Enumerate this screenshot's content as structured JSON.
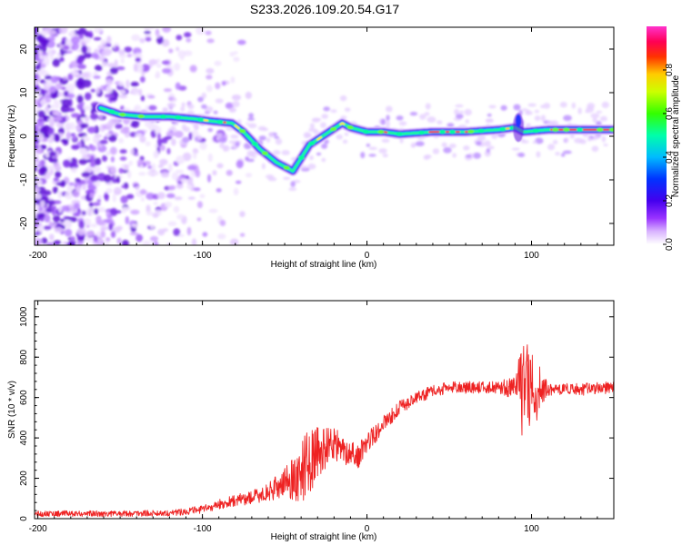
{
  "chart_data": [
    {
      "type": "heatmap",
      "title": "S233.2026.109.20.54.G17",
      "xlabel": "Height of straight line (km)",
      "ylabel": "Frequency (Hz)",
      "xlim": [
        -202,
        150
      ],
      "ylim": [
        -25,
        25
      ],
      "x_ticks": [
        -200,
        -100,
        0,
        100
      ],
      "x_tick_labels": [
        "-200",
        "-100",
        "0",
        "100"
      ],
      "y_ticks": [
        -20,
        -10,
        0,
        10,
        20
      ],
      "y_tick_labels": [
        "-20",
        "-10",
        "0",
        "10",
        "20"
      ],
      "ridge": {
        "description_points_x": [
          -162,
          -150,
          -135,
          -120,
          -105,
          -95,
          -82,
          -75,
          -65,
          -55,
          -45,
          -40,
          -35,
          -25,
          -15,
          -10,
          0,
          10,
          20,
          40,
          60,
          80,
          90,
          95,
          110,
          130,
          150
        ],
        "description_points_freq": [
          6.5,
          5,
          4.5,
          4.5,
          4,
          3.5,
          3,
          1,
          -3,
          -6,
          -8,
          -5,
          -2,
          0.5,
          3,
          2,
          1,
          1,
          0.5,
          1,
          1,
          1.5,
          2,
          1,
          1.5,
          1.5,
          1.5
        ]
      },
      "colorbar": {
        "label": "Normalized spectral amplitude",
        "range": [
          0,
          1
        ],
        "ticks": [
          0.0,
          0.2,
          0.4,
          0.6,
          0.8
        ],
        "tick_labels": [
          "0.0",
          "0.2",
          "0.4",
          "0.6",
          "0.8"
        ],
        "colors": [
          "#ffffff",
          "#cc99ff",
          "#6600cc",
          "#0000ff",
          "#00ccff",
          "#00ff66",
          "#ffff00",
          "#ff6600",
          "#ff0033",
          "#ff33cc"
        ]
      }
    },
    {
      "type": "line",
      "xlabel": "Height of straight line (km)",
      "ylabel": "SNR (10 * v/v)",
      "xlim": [
        -202,
        150
      ],
      "ylim": [
        0,
        1080
      ],
      "x_ticks": [
        -200,
        -100,
        0,
        100
      ],
      "x_tick_labels": [
        "-200",
        "-100",
        "0",
        "100"
      ],
      "y_ticks": [
        0,
        200,
        400,
        600,
        800,
        1000
      ],
      "y_tick_labels": [
        "0",
        "200",
        "400",
        "600",
        "800",
        "1000"
      ],
      "grid": false,
      "color": "#ee2222",
      "trend_x": [
        -202,
        -150,
        -120,
        -100,
        -90,
        -80,
        -70,
        -60,
        -50,
        -40,
        -35,
        -30,
        -25,
        -20,
        -15,
        -10,
        -5,
        0,
        5,
        10,
        20,
        30,
        40,
        50,
        60,
        70,
        80,
        90,
        95,
        100,
        110,
        120,
        130,
        150
      ],
      "trend_y": [
        25,
        25,
        28,
        45,
        70,
        90,
        105,
        130,
        180,
        220,
        300,
        320,
        350,
        380,
        330,
        330,
        310,
        380,
        420,
        470,
        550,
        600,
        630,
        650,
        650,
        650,
        650,
        650,
        650,
        640,
        640,
        640,
        640,
        650
      ],
      "noise_amplitude": [
        15,
        15,
        15,
        20,
        25,
        30,
        35,
        45,
        70,
        150,
        180,
        130,
        110,
        90,
        70,
        60,
        60,
        55,
        50,
        40,
        35,
        30,
        30,
        30,
        30,
        30,
        30,
        60,
        280,
        220,
        30,
        30,
        30,
        30
      ]
    }
  ]
}
